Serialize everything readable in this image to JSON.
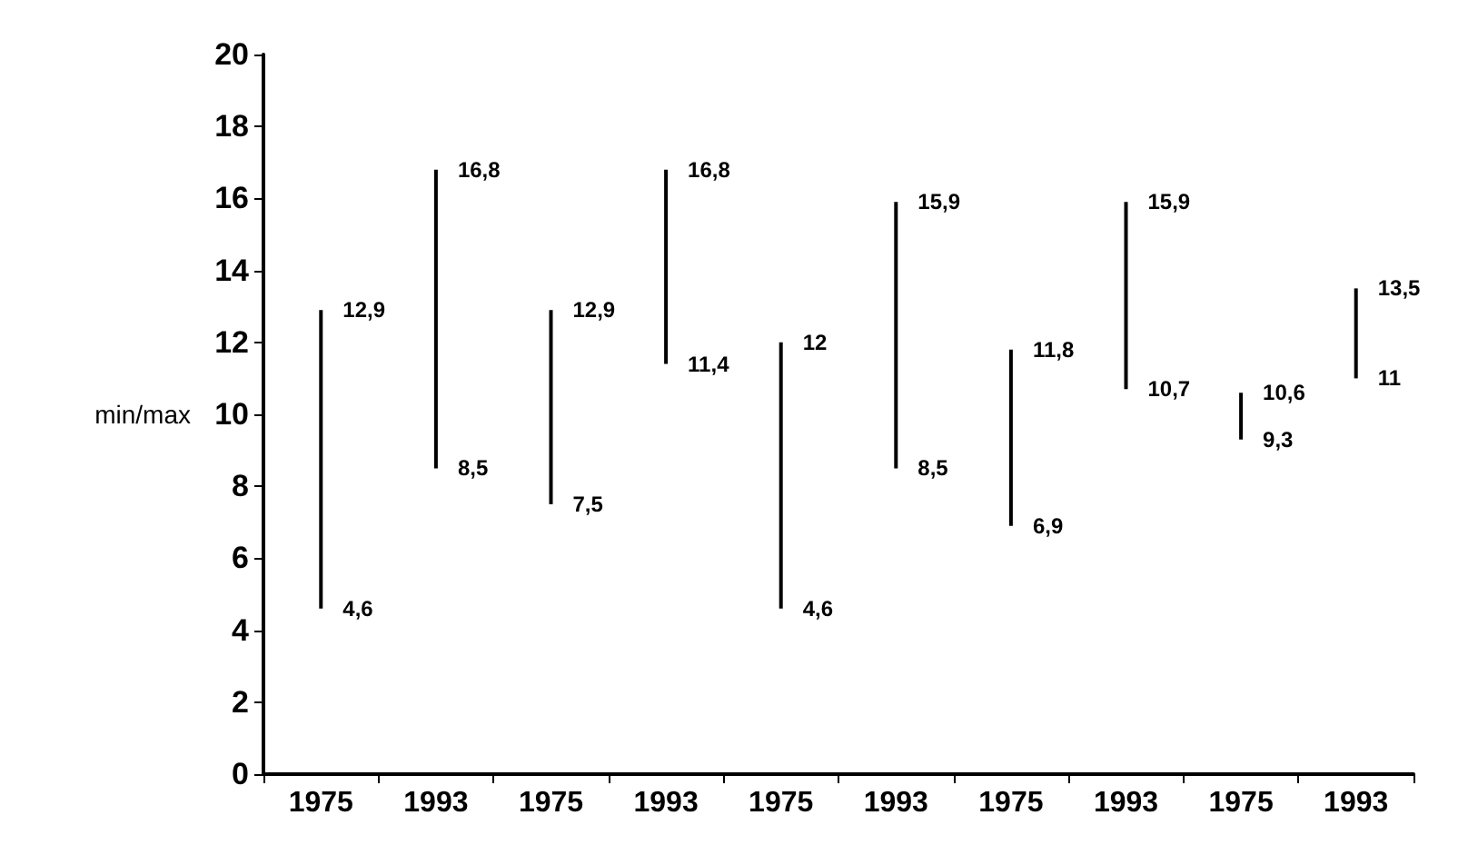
{
  "chart_data": {
    "type": "bar",
    "ylabel": "min/max",
    "categories": [
      "1975",
      "1993",
      "1975",
      "1993",
      "1975",
      "1993",
      "1975",
      "1993",
      "1975",
      "1993"
    ],
    "base": [
      4.6,
      8.5,
      7.5,
      11.4,
      4.6,
      8.5,
      6.9,
      10.7,
      9.3,
      11
    ],
    "values": [
      8.3,
      8.3,
      5.4,
      5.4,
      7.4,
      7.4,
      4.9,
      5.2,
      1.3,
      2.5
    ],
    "color": "#000000",
    "ylim": [
      0,
      20
    ],
    "yticks": [
      0,
      2,
      4,
      6,
      8,
      10,
      12,
      14,
      16,
      18,
      20
    ],
    "grid": false,
    "annotations": [
      "12,9",
      "4,6",
      "16,8",
      "8,5",
      "12,9",
      "7,5",
      "16,8",
      "11,4",
      "12",
      "4,6",
      "15,9",
      "8,5",
      "11,8",
      "6,9",
      "15,9",
      "10,7",
      "10,6",
      "9,3",
      "13,5",
      "11"
    ]
  }
}
